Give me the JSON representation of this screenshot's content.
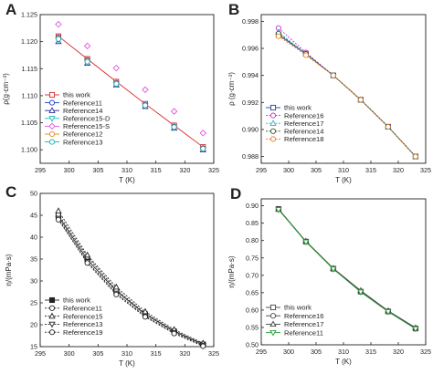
{
  "figure": {
    "panels": [
      "A",
      "B",
      "C",
      "D"
    ]
  },
  "chart_data": [
    {
      "panel": "A",
      "type": "line",
      "xlabel": "T (K)",
      "ylabel": "ρ(g·cm⁻³)",
      "xlim": [
        295,
        325
      ],
      "ylim": [
        1.0975,
        1.125
      ],
      "xticks": [
        295,
        300,
        305,
        310,
        315,
        320,
        325
      ],
      "yticks": [
        1.1,
        1.105,
        1.11,
        1.115,
        1.12,
        1.125
      ],
      "ytick_format": 3,
      "legend_position": "bottom-left",
      "series": [
        {
          "name": "this work",
          "color": "#d62728",
          "marker": "square",
          "dash": "",
          "line": true,
          "x": [
            298.15,
            303.15,
            308.15,
            313.15,
            318.15,
            323.15
          ],
          "y": [
            1.121,
            1.1168,
            1.1126,
            1.1085,
            1.1045,
            1.1005
          ]
        },
        {
          "name": "Reference11",
          "color": "#1f3fd6",
          "marker": "circle",
          "dash": "",
          "line": false,
          "x": [
            298.15,
            303.15,
            308.15,
            313.15,
            318.15,
            323.15
          ],
          "y": [
            1.1208,
            1.1166,
            1.1124,
            1.1083,
            1.1043,
            1.1003
          ]
        },
        {
          "name": "Reference14",
          "color": "#2a2aa0",
          "marker": "triangle",
          "dash": "",
          "line": false,
          "x": [
            298.15,
            303.15,
            308.15,
            313.15,
            318.15,
            323.15
          ],
          "y": [
            1.12,
            1.116,
            1.112,
            1.108,
            1.104,
            1.1
          ]
        },
        {
          "name": "Reference15-D",
          "color": "#1fb8b8",
          "marker": "triangle-down",
          "dash": "",
          "line": false,
          "x": [
            298.15,
            303.15,
            308.15,
            313.15,
            318.15,
            323.15
          ],
          "y": [
            1.1203,
            1.1162,
            1.1121,
            1.1081,
            1.1041,
            1.1001
          ]
        },
        {
          "name": "Reference15-S",
          "color": "#e055e0",
          "marker": "diamond",
          "dash": "",
          "line": false,
          "x": [
            298.15,
            303.15,
            308.15,
            313.15,
            318.15,
            323.15
          ],
          "y": [
            1.1232,
            1.1192,
            1.1151,
            1.1111,
            1.1071,
            1.1031
          ]
        },
        {
          "name": "Reference12",
          "color": "#e08a1a",
          "marker": "circle",
          "dash": "",
          "line": false,
          "x": [
            298.15,
            303.15,
            308.15,
            313.15,
            318.15,
            323.15
          ],
          "y": [
            1.1206,
            1.1164,
            1.1123,
            1.1082,
            1.1042,
            1.1002
          ]
        },
        {
          "name": "Reference13",
          "color": "#18b0b0",
          "marker": "circle",
          "dash": "",
          "line": false,
          "x": [
            298.15,
            303.15,
            308.15,
            313.15,
            318.15,
            323.15
          ],
          "y": [
            1.1205,
            1.1163,
            1.1122,
            1.1082,
            1.1042,
            1.1002
          ]
        }
      ]
    },
    {
      "panel": "B",
      "type": "line",
      "xlabel": "T (K)",
      "ylabel": "ρ (g·cm⁻³)",
      "xlim": [
        295,
        325
      ],
      "ylim": [
        0.9875,
        0.9985
      ],
      "xticks": [
        295,
        300,
        305,
        310,
        315,
        320,
        325
      ],
      "yticks": [
        0.988,
        0.99,
        0.992,
        0.994,
        0.996,
        0.998
      ],
      "ytick_format": 3,
      "legend_position": "bottom-left",
      "series": [
        {
          "name": "this work",
          "color": "#2a3f9a",
          "marker": "square",
          "dash": "",
          "line": true,
          "x": [
            298.15,
            303.15,
            308.15,
            313.15,
            318.15,
            323.15
          ],
          "y": [
            0.997,
            0.9956,
            0.994,
            0.9922,
            0.9902,
            0.988
          ]
        },
        {
          "name": "Reference16",
          "color": "#d22ad2",
          "marker": "circle",
          "dash": "2,1.5",
          "line": true,
          "x": [
            298.15,
            303.15,
            308.15,
            313.15,
            318.15,
            323.15
          ],
          "y": [
            0.9975,
            0.9957,
            0.994,
            0.9922,
            0.9902,
            0.988
          ]
        },
        {
          "name": "Reference17",
          "color": "#2bb3c2",
          "marker": "triangle",
          "dash": "2,1.5",
          "line": true,
          "x": [
            298.15,
            303.15,
            308.15,
            313.15,
            318.15,
            323.15
          ],
          "y": [
            0.9972,
            0.9956,
            0.994,
            0.9922,
            0.9902,
            0.988
          ]
        },
        {
          "name": "Reference14",
          "color": "#2c5a2c",
          "marker": "circle",
          "dash": "2,1.5",
          "line": true,
          "x": [
            298.15,
            303.15,
            308.15,
            313.15,
            318.15,
            323.15
          ],
          "y": [
            0.9971,
            0.9956,
            0.994,
            0.9922,
            0.9902,
            0.988
          ]
        },
        {
          "name": "Reference18",
          "color": "#e08020",
          "marker": "circle",
          "dash": "2,1.5",
          "line": true,
          "x": [
            298.15,
            303.15,
            308.15,
            313.15,
            318.15,
            323.15
          ],
          "y": [
            0.9969,
            0.9955,
            0.994,
            0.9922,
            0.9902,
            0.988
          ]
        }
      ]
    },
    {
      "panel": "C",
      "type": "line",
      "xlabel": "T (K)",
      "ylabel": "η/(mPa·s)",
      "xlim": [
        295,
        325
      ],
      "ylim": [
        15,
        50
      ],
      "xticks": [
        295,
        300,
        305,
        310,
        315,
        320,
        325
      ],
      "yticks": [
        15,
        20,
        25,
        30,
        35,
        40,
        45,
        50
      ],
      "ytick_format": 0,
      "legend_position": "bottom-left",
      "series": [
        {
          "name": "this work",
          "color": "#222222",
          "marker": "square-filled",
          "dash": "",
          "line": true,
          "x": [
            298.15,
            303.15,
            308.15,
            313.15,
            318.15,
            323.15
          ],
          "y": [
            44.8,
            34.9,
            27.7,
            22.4,
            18.5,
            15.5
          ]
        },
        {
          "name": "Reference11",
          "color": "#222222",
          "marker": "circle",
          "dash": "2,1.5",
          "line": true,
          "x": [
            298.15,
            303.15,
            308.15,
            313.15,
            318.15,
            323.15
          ],
          "y": [
            45.2,
            35.5,
            28.0,
            22.6,
            18.6,
            15.6
          ]
        },
        {
          "name": "Reference15",
          "color": "#222222",
          "marker": "triangle",
          "dash": "2,1.5",
          "line": true,
          "x": [
            298.15,
            303.15,
            308.15,
            313.15,
            318.15,
            323.15
          ],
          "y": [
            46.0,
            35.9,
            28.6,
            23.0,
            18.9,
            15.8
          ]
        },
        {
          "name": "Reference13",
          "color": "#222222",
          "marker": "triangle-down",
          "dash": "2,1.5",
          "line": true,
          "x": [
            298.15,
            303.15,
            308.15,
            313.15,
            318.15,
            323.15
          ],
          "y": [
            44.3,
            34.4,
            27.2,
            22.0,
            18.2,
            15.3
          ]
        },
        {
          "name": "Reference19",
          "color": "#222222",
          "marker": "circle",
          "dash": "2,1.5",
          "line": true,
          "x": [
            298.15,
            303.15,
            308.15,
            313.15,
            318.15,
            323.15
          ],
          "y": [
            44.0,
            34.1,
            26.9,
            21.8,
            18.0,
            15.1
          ]
        }
      ]
    },
    {
      "panel": "D",
      "type": "line",
      "xlabel": "T (K)",
      "ylabel": "η/(mPa·s)",
      "xlim": [
        295,
        325
      ],
      "ylim": [
        0.5,
        0.92
      ],
      "xticks": [
        295,
        300,
        305,
        310,
        315,
        320,
        325
      ],
      "yticks": [
        0.5,
        0.55,
        0.6,
        0.65,
        0.7,
        0.75,
        0.8,
        0.85,
        0.9
      ],
      "ytick_format": 2,
      "legend_position": "bottom-left",
      "series": [
        {
          "name": "this work",
          "color": "#444444",
          "marker": "square",
          "dash": "",
          "line": true,
          "x": [
            298.15,
            303.15,
            308.15,
            313.15,
            318.15,
            323.15
          ],
          "y": [
            0.891,
            0.797,
            0.719,
            0.653,
            0.596,
            0.547
          ]
        },
        {
          "name": "Reference16",
          "color": "#444444",
          "marker": "circle",
          "dash": "",
          "line": true,
          "x": [
            298.15,
            303.15,
            308.15,
            313.15,
            318.15,
            323.15
          ],
          "y": [
            0.89,
            0.797,
            0.719,
            0.653,
            0.596,
            0.547
          ]
        },
        {
          "name": "Reference17",
          "color": "#444444",
          "marker": "triangle",
          "dash": "",
          "line": true,
          "x": [
            298.15,
            303.15,
            308.15,
            313.15,
            318.15,
            323.15
          ],
          "y": [
            0.89,
            0.798,
            0.72,
            0.656,
            0.598,
            0.549
          ]
        },
        {
          "name": "Reference11",
          "color": "#2e9e3c",
          "marker": "triangle-down",
          "dash": "",
          "line": true,
          "x": [
            298.15,
            303.15,
            308.15,
            313.15,
            318.15,
            323.15
          ],
          "y": [
            0.889,
            0.796,
            0.718,
            0.652,
            0.595,
            0.546
          ]
        }
      ]
    }
  ]
}
